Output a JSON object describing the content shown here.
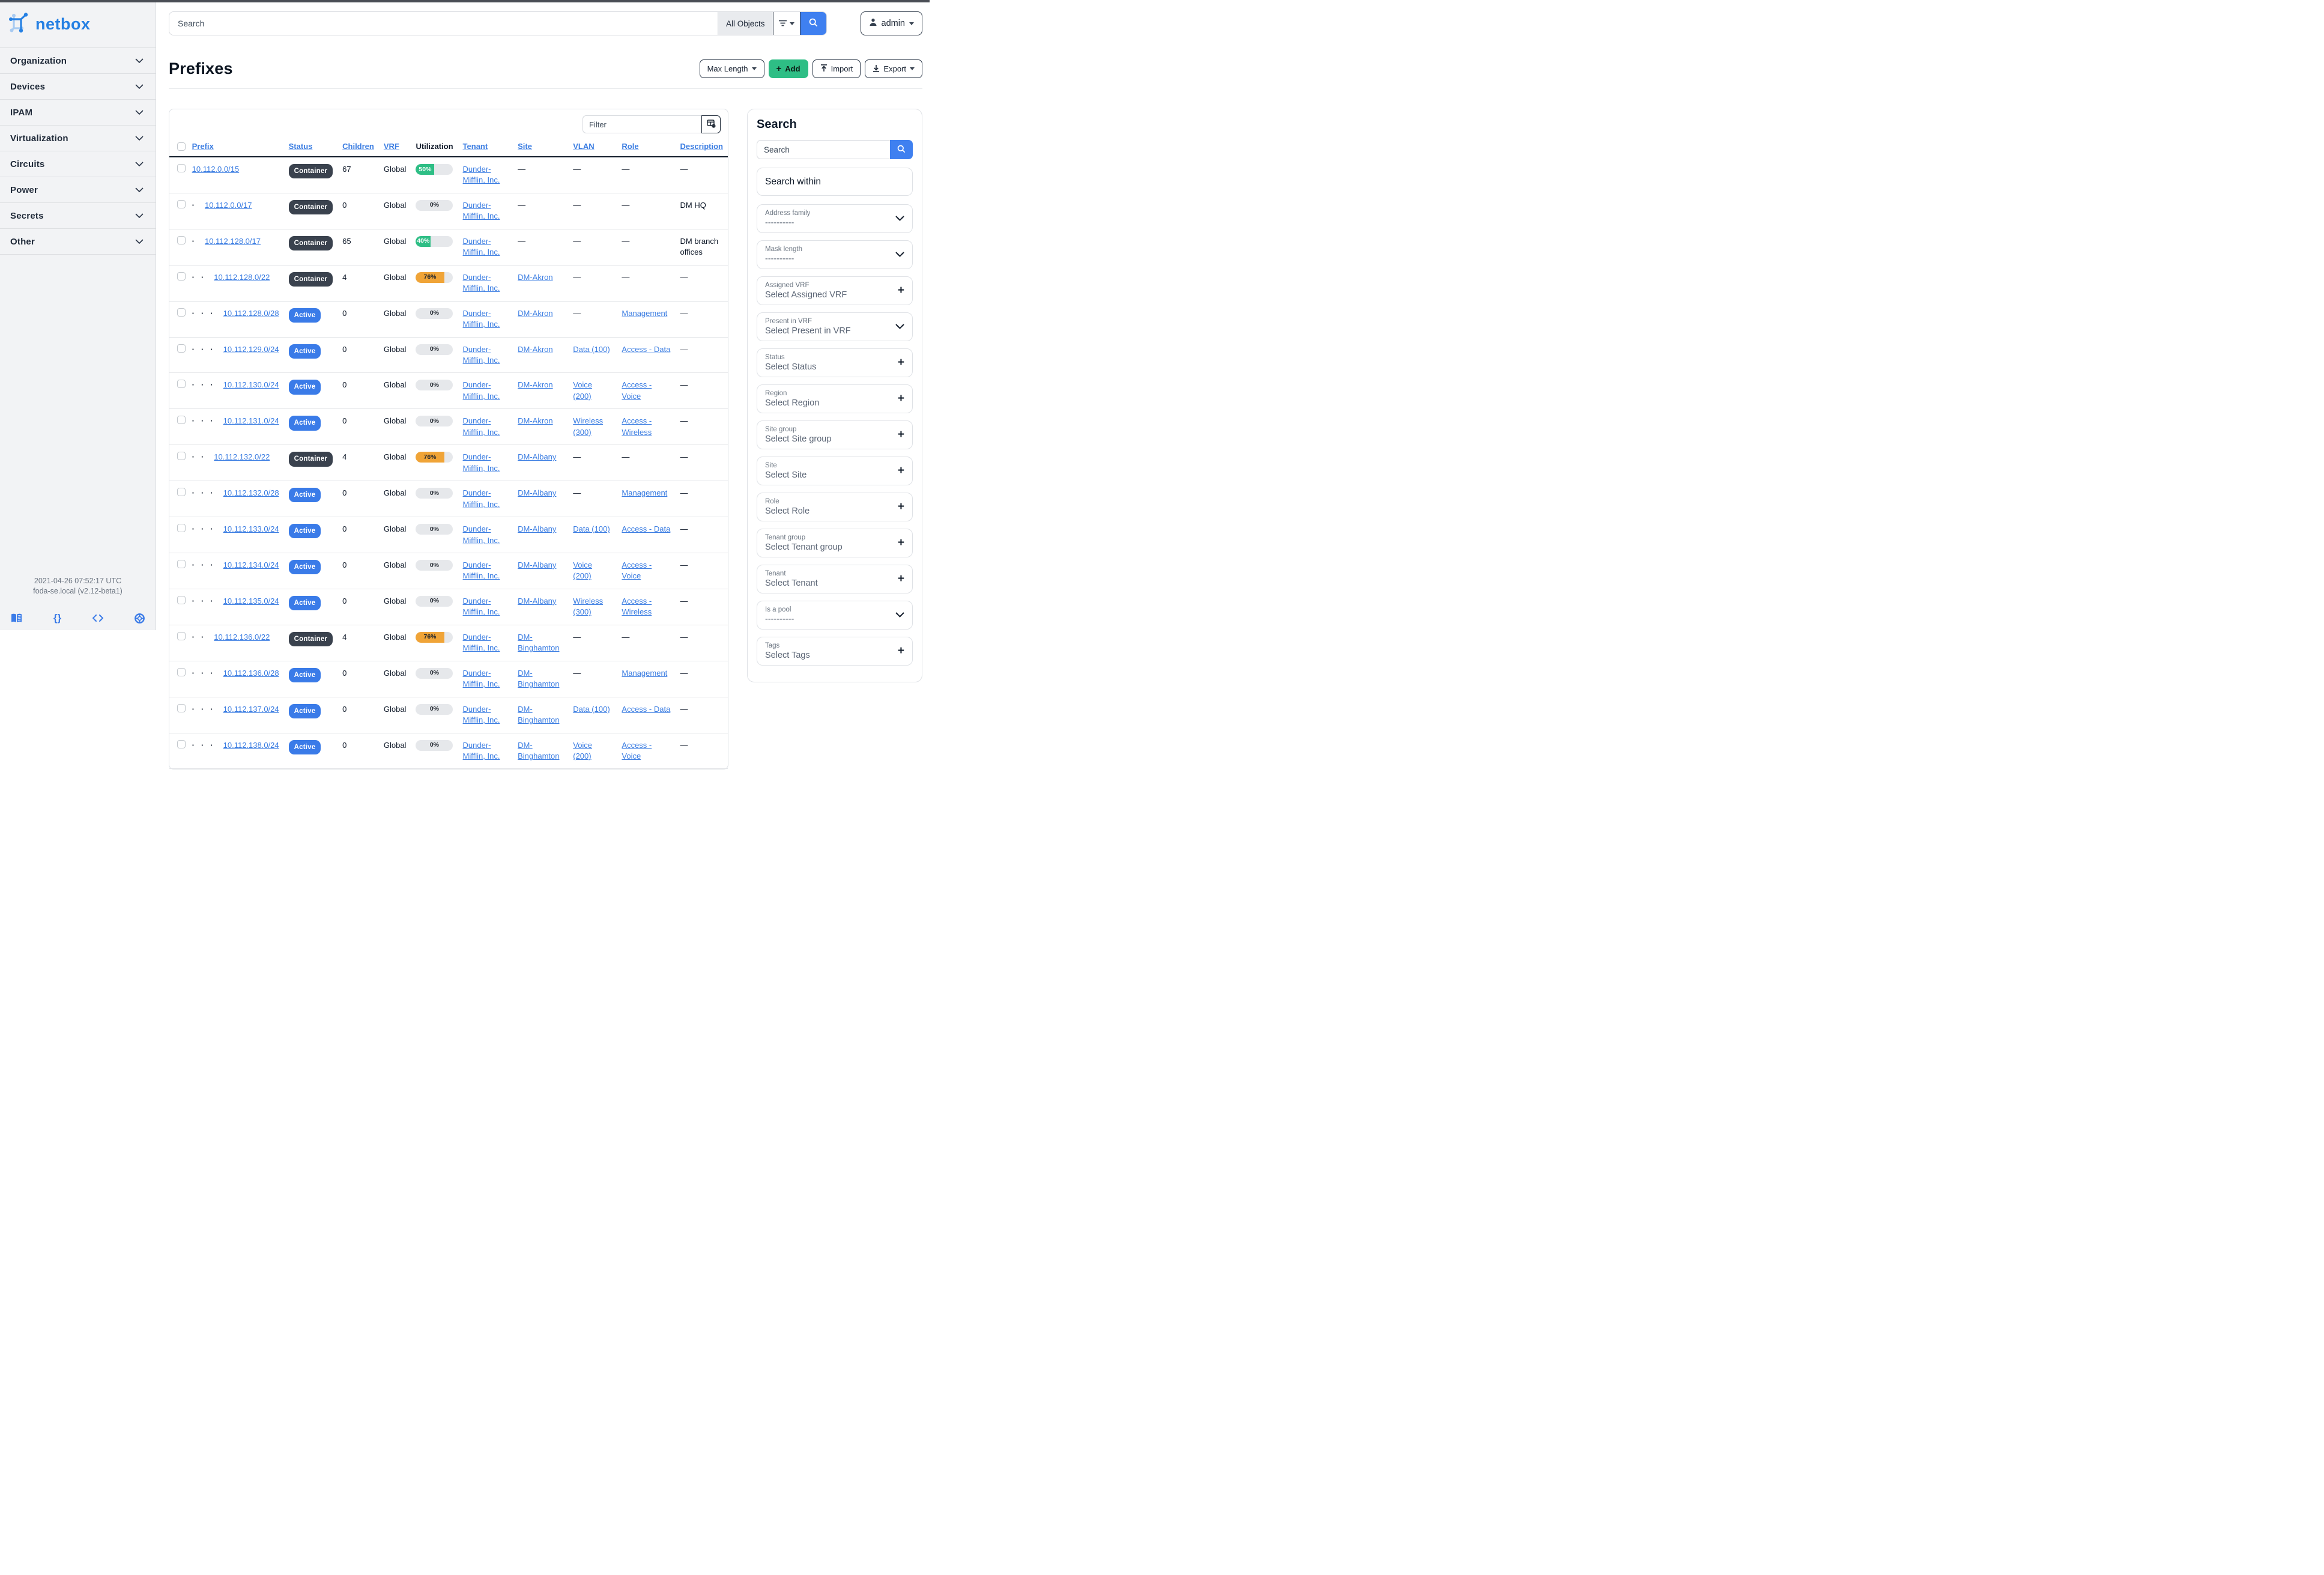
{
  "topnav": {
    "search_placeholder": "Search",
    "scope_label": "All Objects",
    "user_label": "admin"
  },
  "sidebar": {
    "brand": "netbox",
    "items": [
      {
        "label": "Organization"
      },
      {
        "label": "Devices"
      },
      {
        "label": "IPAM"
      },
      {
        "label": "Virtualization"
      },
      {
        "label": "Circuits"
      },
      {
        "label": "Power"
      },
      {
        "label": "Secrets"
      },
      {
        "label": "Other"
      }
    ],
    "footer": {
      "timestamp": "2021-04-26 07:52:17 UTC",
      "host": "foda-se.local (v2.12-beta1)"
    },
    "footer_icons": [
      "docs-icon",
      "api-icon",
      "code-icon",
      "help-icon"
    ]
  },
  "page": {
    "title": "Prefixes",
    "actions": {
      "max_length": "Max Length",
      "add": "Add",
      "import": "Import",
      "export": "Export"
    }
  },
  "table": {
    "filter_placeholder": "Filter",
    "columns": [
      {
        "label": "Prefix",
        "link": true
      },
      {
        "label": "Status",
        "link": true
      },
      {
        "label": "Children",
        "link": true
      },
      {
        "label": "VRF",
        "link": true
      },
      {
        "label": "Utilization",
        "link": false
      },
      {
        "label": "Tenant",
        "link": true
      },
      {
        "label": "Site",
        "link": true
      },
      {
        "label": "VLAN",
        "link": true
      },
      {
        "label": "Role",
        "link": true
      },
      {
        "label": "Description",
        "link": true
      }
    ],
    "empty_cell": "—",
    "rows": [
      {
        "depth": 0,
        "prefix": "10.112.0.0/15",
        "status": "Container",
        "children": "67",
        "vrf": "Global",
        "util": 50,
        "tenant": "Dunder-Mifflin, Inc.",
        "site": "",
        "vlan": "",
        "role": "",
        "desc": ""
      },
      {
        "depth": 1,
        "prefix": "10.112.0.0/17",
        "status": "Container",
        "children": "0",
        "vrf": "Global",
        "util": 0,
        "tenant": "Dunder-Mifflin, Inc.",
        "site": "",
        "vlan": "",
        "role": "",
        "desc": "DM HQ"
      },
      {
        "depth": 1,
        "prefix": "10.112.128.0/17",
        "status": "Container",
        "children": "65",
        "vrf": "Global",
        "util": 40,
        "tenant": "Dunder-Mifflin, Inc.",
        "site": "",
        "vlan": "",
        "role": "",
        "desc": "DM branch offices"
      },
      {
        "depth": 2,
        "prefix": "10.112.128.0/22",
        "status": "Container",
        "children": "4",
        "vrf": "Global",
        "util": 76,
        "tenant": "Dunder-Mifflin, Inc.",
        "site": "DM-Akron",
        "vlan": "",
        "role": "",
        "desc": ""
      },
      {
        "depth": 3,
        "prefix": "10.112.128.0/28",
        "status": "Active",
        "children": "0",
        "vrf": "Global",
        "util": 0,
        "tenant": "Dunder-Mifflin, Inc.",
        "site": "DM-Akron",
        "vlan": "",
        "role": "Management",
        "desc": ""
      },
      {
        "depth": 3,
        "prefix": "10.112.129.0/24",
        "status": "Active",
        "children": "0",
        "vrf": "Global",
        "util": 0,
        "tenant": "Dunder-Mifflin, Inc.",
        "site": "DM-Akron",
        "vlan": "Data (100)",
        "role": "Access - Data",
        "desc": ""
      },
      {
        "depth": 3,
        "prefix": "10.112.130.0/24",
        "status": "Active",
        "children": "0",
        "vrf": "Global",
        "util": 0,
        "tenant": "Dunder-Mifflin, Inc.",
        "site": "DM-Akron",
        "vlan": "Voice (200)",
        "role": "Access - Voice",
        "desc": ""
      },
      {
        "depth": 3,
        "prefix": "10.112.131.0/24",
        "status": "Active",
        "children": "0",
        "vrf": "Global",
        "util": 0,
        "tenant": "Dunder-Mifflin, Inc.",
        "site": "DM-Akron",
        "vlan": "Wireless (300)",
        "role": "Access - Wireless",
        "desc": ""
      },
      {
        "depth": 2,
        "prefix": "10.112.132.0/22",
        "status": "Container",
        "children": "4",
        "vrf": "Global",
        "util": 76,
        "tenant": "Dunder-Mifflin, Inc.",
        "site": "DM-Albany",
        "vlan": "",
        "role": "",
        "desc": ""
      },
      {
        "depth": 3,
        "prefix": "10.112.132.0/28",
        "status": "Active",
        "children": "0",
        "vrf": "Global",
        "util": 0,
        "tenant": "Dunder-Mifflin, Inc.",
        "site": "DM-Albany",
        "vlan": "",
        "role": "Management",
        "desc": ""
      },
      {
        "depth": 3,
        "prefix": "10.112.133.0/24",
        "status": "Active",
        "children": "0",
        "vrf": "Global",
        "util": 0,
        "tenant": "Dunder-Mifflin, Inc.",
        "site": "DM-Albany",
        "vlan": "Data (100)",
        "role": "Access - Data",
        "desc": ""
      },
      {
        "depth": 3,
        "prefix": "10.112.134.0/24",
        "status": "Active",
        "children": "0",
        "vrf": "Global",
        "util": 0,
        "tenant": "Dunder-Mifflin, Inc.",
        "site": "DM-Albany",
        "vlan": "Voice (200)",
        "role": "Access - Voice",
        "desc": ""
      },
      {
        "depth": 3,
        "prefix": "10.112.135.0/24",
        "status": "Active",
        "children": "0",
        "vrf": "Global",
        "util": 0,
        "tenant": "Dunder-Mifflin, Inc.",
        "site": "DM-Albany",
        "vlan": "Wireless (300)",
        "role": "Access - Wireless",
        "desc": ""
      },
      {
        "depth": 2,
        "prefix": "10.112.136.0/22",
        "status": "Container",
        "children": "4",
        "vrf": "Global",
        "util": 76,
        "tenant": "Dunder-Mifflin, Inc.",
        "site": "DM-Binghamton",
        "vlan": "",
        "role": "",
        "desc": ""
      },
      {
        "depth": 3,
        "prefix": "10.112.136.0/28",
        "status": "Active",
        "children": "0",
        "vrf": "Global",
        "util": 0,
        "tenant": "Dunder-Mifflin, Inc.",
        "site": "DM-Binghamton",
        "vlan": "",
        "role": "Management",
        "desc": ""
      },
      {
        "depth": 3,
        "prefix": "10.112.137.0/24",
        "status": "Active",
        "children": "0",
        "vrf": "Global",
        "util": 0,
        "tenant": "Dunder-Mifflin, Inc.",
        "site": "DM-Binghamton",
        "vlan": "Data (100)",
        "role": "Access - Data",
        "desc": ""
      },
      {
        "depth": 3,
        "prefix": "10.112.138.0/24",
        "status": "Active",
        "children": "0",
        "vrf": "Global",
        "util": 0,
        "tenant": "Dunder-Mifflin, Inc.",
        "site": "DM-Binghamton",
        "vlan": "Voice (200)",
        "role": "Access - Voice",
        "desc": ""
      }
    ]
  },
  "filters_panel": {
    "title": "Search",
    "search_placeholder": "Search",
    "search_within_label": "Search within",
    "filters": [
      {
        "label": "Address family",
        "value": "----------",
        "control": "chevron"
      },
      {
        "label": "Mask length",
        "value": "----------",
        "control": "chevron"
      },
      {
        "label": "Assigned VRF",
        "value": "Select Assigned VRF",
        "control": "plus"
      },
      {
        "label": "Present in VRF",
        "value": "Select Present in VRF",
        "control": "chevron"
      },
      {
        "label": "Status",
        "value": "Select Status",
        "control": "plus"
      },
      {
        "label": "Region",
        "value": "Select Region",
        "control": "plus"
      },
      {
        "label": "Site group",
        "value": "Select Site group",
        "control": "plus"
      },
      {
        "label": "Site",
        "value": "Select Site",
        "control": "plus"
      },
      {
        "label": "Role",
        "value": "Select Role",
        "control": "plus"
      },
      {
        "label": "Tenant group",
        "value": "Select Tenant group",
        "control": "plus"
      },
      {
        "label": "Tenant",
        "value": "Select Tenant",
        "control": "plus"
      },
      {
        "label": "Is a pool",
        "value": "----------",
        "control": "chevron"
      },
      {
        "label": "Tags",
        "value": "Select Tags",
        "control": "plus"
      }
    ]
  },
  "colors": {
    "accent_blue": "#3f80f0",
    "link_blue": "#3b7de2",
    "badge_dark": "#3a424e",
    "badge_blue": "#3a7be8",
    "green": "#2ebe85",
    "orange": "#f0a437",
    "brand_blue": "#2580e3"
  }
}
